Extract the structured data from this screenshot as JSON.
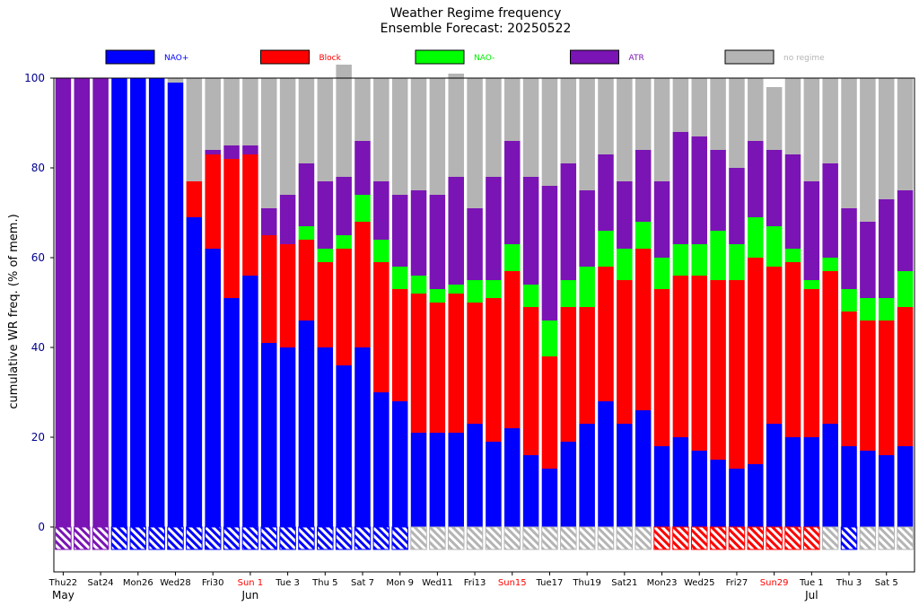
{
  "chart_data": {
    "type": "bar",
    "stacked": true,
    "title": "Weather Regime frequency",
    "subtitle": "Ensemble Forecast: 20250522",
    "ylabel": "cumulative WR freq. (% of mem.)",
    "xlabel": "",
    "ylim": [
      -10,
      100
    ],
    "yticks": [
      0,
      20,
      40,
      60,
      80,
      100
    ],
    "grid": false,
    "legend_placement": "top",
    "x_tick_labels": [
      {
        "index": 0,
        "label": "Thu22",
        "weekend": false
      },
      {
        "index": 2,
        "label": "Sat24",
        "weekend": false
      },
      {
        "index": 4,
        "label": "Mon26",
        "weekend": false
      },
      {
        "index": 6,
        "label": "Wed28",
        "weekend": false
      },
      {
        "index": 8,
        "label": "Fri30",
        "weekend": false
      },
      {
        "index": 10,
        "label": "Sun 1",
        "weekend": true
      },
      {
        "index": 12,
        "label": "Tue 3",
        "weekend": false
      },
      {
        "index": 14,
        "label": "Thu 5",
        "weekend": false
      },
      {
        "index": 16,
        "label": "Sat 7",
        "weekend": false
      },
      {
        "index": 18,
        "label": "Mon 9",
        "weekend": false
      },
      {
        "index": 20,
        "label": "Wed11",
        "weekend": false
      },
      {
        "index": 22,
        "label": "Fri13",
        "weekend": false
      },
      {
        "index": 24,
        "label": "Sun15",
        "weekend": true
      },
      {
        "index": 26,
        "label": "Tue17",
        "weekend": false
      },
      {
        "index": 28,
        "label": "Thu19",
        "weekend": false
      },
      {
        "index": 30,
        "label": "Sat21",
        "weekend": false
      },
      {
        "index": 32,
        "label": "Mon23",
        "weekend": false
      },
      {
        "index": 34,
        "label": "Wed25",
        "weekend": false
      },
      {
        "index": 36,
        "label": "Fri27",
        "weekend": false
      },
      {
        "index": 38,
        "label": "Sun29",
        "weekend": true
      },
      {
        "index": 40,
        "label": "Tue 1",
        "weekend": false
      },
      {
        "index": 42,
        "label": "Thu 3",
        "weekend": false
      },
      {
        "index": 44,
        "label": "Sat 5",
        "weekend": false
      }
    ],
    "month_labels": [
      {
        "index": 0,
        "label": "May"
      },
      {
        "index": 10,
        "label": "Jun"
      },
      {
        "index": 40,
        "label": "Jul"
      }
    ],
    "series": [
      {
        "name": "NAO+",
        "color": "#0000ff",
        "label_color": "#0000ff",
        "values": [
          0,
          0,
          0,
          100,
          100,
          100,
          99,
          69,
          62,
          51,
          56,
          41,
          40,
          46,
          40,
          36,
          40,
          30,
          28,
          21,
          21,
          21,
          23,
          19,
          22,
          16,
          13,
          19,
          23,
          28,
          23,
          26,
          18,
          20,
          17,
          15,
          13,
          14,
          23,
          20,
          20,
          23,
          18,
          17,
          16,
          18
        ]
      },
      {
        "name": "Block",
        "color": "#ff0000",
        "label_color": "#ff0000",
        "values": [
          0,
          0,
          0,
          0,
          0,
          0,
          0,
          8,
          21,
          31,
          27,
          24,
          23,
          18,
          19,
          26,
          28,
          29,
          25,
          31,
          29,
          31,
          27,
          32,
          35,
          33,
          25,
          30,
          26,
          30,
          32,
          36,
          35,
          36,
          39,
          40,
          42,
          46,
          35,
          39,
          33,
          34,
          30,
          29,
          30,
          31
        ]
      },
      {
        "name": "NAO-",
        "color": "#00ff00",
        "label_color": "#00ee00",
        "values": [
          0,
          0,
          0,
          0,
          0,
          0,
          0,
          0,
          0,
          0,
          0,
          0,
          0,
          3,
          3,
          3,
          6,
          5,
          5,
          4,
          3,
          2,
          5,
          4,
          6,
          5,
          8,
          6,
          9,
          8,
          7,
          6,
          7,
          7,
          7,
          11,
          8,
          9,
          9,
          3,
          2,
          3,
          5,
          5,
          5,
          8
        ]
      },
      {
        "name": "ATR",
        "color": "#7a14b4",
        "label_color": "#7a14b4",
        "values": [
          100,
          100,
          100,
          0,
          0,
          0,
          0,
          0,
          1,
          3,
          2,
          6,
          11,
          14,
          15,
          13,
          12,
          13,
          16,
          19,
          21,
          24,
          16,
          23,
          23,
          24,
          30,
          26,
          17,
          17,
          15,
          16,
          17,
          25,
          24,
          18,
          17,
          17,
          17,
          21,
          22,
          21,
          18,
          17,
          22,
          18
        ]
      },
      {
        "name": "no regime",
        "color": "#b4b4b4",
        "label_color": "#b4b4b4",
        "values": [
          0,
          0,
          0,
          0,
          0,
          0,
          1,
          23,
          16,
          15,
          15,
          29,
          26,
          19,
          23,
          25,
          14,
          23,
          26,
          25,
          26,
          23,
          29,
          22,
          14,
          22,
          24,
          19,
          25,
          17,
          23,
          16,
          23,
          12,
          13,
          16,
          20,
          14,
          14,
          17,
          23,
          19,
          29,
          32,
          27,
          25
        ]
      }
    ],
    "dominant_regime_strip": {
      "y_range": [
        -5,
        0
      ],
      "regime_per_bar": [
        "ATR",
        "ATR",
        "ATR",
        "NAO+",
        "NAO+",
        "NAO+",
        "NAO+",
        "NAO+",
        "NAO+",
        "NAO+",
        "NAO+",
        "NAO+",
        "NAO+",
        "NAO+",
        "NAO+",
        "NAO+",
        "NAO+",
        "NAO+",
        "NAO+",
        "no regime",
        "no regime",
        "no regime",
        "no regime",
        "no regime",
        "no regime",
        "no regime",
        "no regime",
        "no regime",
        "no regime",
        "no regime",
        "no regime",
        "no regime",
        "Block",
        "Block",
        "Block",
        "Block",
        "Block",
        "Block",
        "Block",
        "Block",
        "Block",
        "no regime",
        "NAO+",
        "no regime",
        "no regime",
        "no regime"
      ]
    }
  }
}
